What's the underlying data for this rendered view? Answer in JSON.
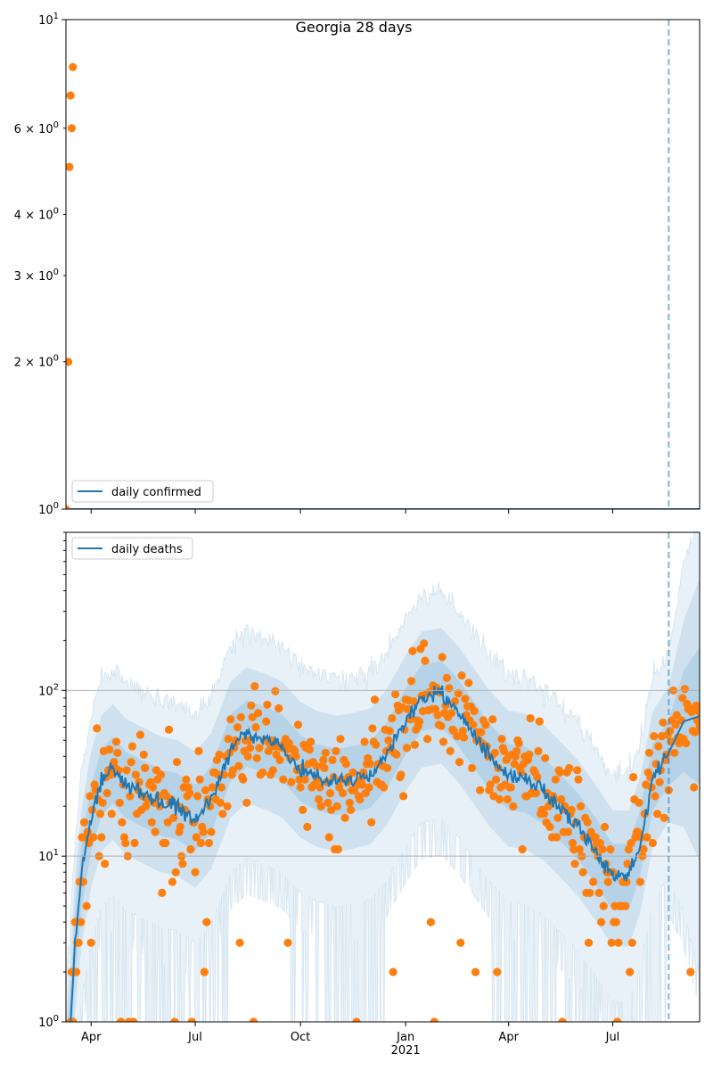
{
  "figure": {
    "suptitle": "Georgia 28 days"
  },
  "chart_data": [
    {
      "type": "line",
      "legend": {
        "label": "daily confirmed",
        "placement": "lower-left"
      },
      "yscale": "log",
      "ylim": [
        1,
        10
      ],
      "x_range": [
        "2020-03-10",
        "2021-09-15"
      ],
      "y_ticks": [
        {
          "value": 1,
          "base": "10",
          "exp": "0"
        },
        {
          "value": 10,
          "base": "10",
          "exp": "1"
        }
      ],
      "y_minor_ticks": [
        {
          "value": 2,
          "base": "2 × 10",
          "exp": "0"
        },
        {
          "value": 3,
          "base": "3 × 10",
          "exp": "0"
        },
        {
          "value": 4,
          "base": "4 × 10",
          "exp": "0"
        },
        {
          "value": 6,
          "base": "6 × 10",
          "exp": "0"
        }
      ],
      "forecast_line_date": "2021-08-19",
      "series": [
        {
          "name": "daily confirmed",
          "kind": "line",
          "x": [
            "2020-03-10",
            "2021-09-15"
          ],
          "y": [
            1,
            1
          ]
        },
        {
          "kind": "points",
          "x": [
            "2020-03-10",
            "2020-03-12",
            "2020-03-13",
            "2020-03-14",
            "2020-03-15",
            "2020-03-16"
          ],
          "y": [
            1,
            2,
            5,
            7,
            6,
            8
          ]
        }
      ],
      "colors": {
        "line": "#1f77b4",
        "points": "#ff7f0e",
        "forecast_line": "#1f77b4"
      }
    },
    {
      "type": "line",
      "legend": {
        "label": "daily deaths",
        "placement": "upper-left"
      },
      "yscale": "log",
      "ylim": [
        1,
        900
      ],
      "grid": "major-y",
      "x_range": [
        "2020-03-10",
        "2021-09-15"
      ],
      "x_ticks": [
        {
          "date": "2020-04-01",
          "label": "Apr"
        },
        {
          "date": "2020-07-01",
          "label": "Jul"
        },
        {
          "date": "2020-10-01",
          "label": "Oct"
        },
        {
          "date": "2021-01-01",
          "label": "Jan",
          "sublabel": "2021"
        },
        {
          "date": "2021-04-01",
          "label": "Apr"
        },
        {
          "date": "2021-07-01",
          "label": "Jul"
        }
      ],
      "y_ticks": [
        {
          "value": 1,
          "base": "10",
          "exp": "0"
        },
        {
          "value": 10,
          "base": "10",
          "exp": "1"
        },
        {
          "value": 100,
          "base": "10",
          "exp": "2"
        }
      ],
      "forecast_line_date": "2021-08-19",
      "anchors": [
        [
          "2020-03-10",
          0.4
        ],
        [
          "2020-03-14",
          1.0
        ],
        [
          "2020-03-18",
          3
        ],
        [
          "2020-03-24",
          8
        ],
        [
          "2020-04-01",
          17
        ],
        [
          "2020-04-10",
          28
        ],
        [
          "2020-04-20",
          33
        ],
        [
          "2020-05-01",
          27
        ],
        [
          "2020-05-15",
          24
        ],
        [
          "2020-06-01",
          21
        ],
        [
          "2020-06-15",
          20
        ],
        [
          "2020-07-01",
          17
        ],
        [
          "2020-07-15",
          22
        ],
        [
          "2020-08-01",
          45
        ],
        [
          "2020-08-15",
          55
        ],
        [
          "2020-09-01",
          50
        ],
        [
          "2020-09-15",
          45
        ],
        [
          "2020-10-01",
          34
        ],
        [
          "2020-10-15",
          30
        ],
        [
          "2020-11-01",
          28
        ],
        [
          "2020-11-15",
          29
        ],
        [
          "2020-12-01",
          31
        ],
        [
          "2020-12-15",
          40
        ],
        [
          "2021-01-01",
          65
        ],
        [
          "2021-01-15",
          90
        ],
        [
          "2021-02-01",
          95
        ],
        [
          "2021-02-15",
          75
        ],
        [
          "2021-03-01",
          55
        ],
        [
          "2021-03-15",
          40
        ],
        [
          "2021-04-01",
          30
        ],
        [
          "2021-04-15",
          29
        ],
        [
          "2021-05-01",
          25
        ],
        [
          "2021-05-15",
          20
        ],
        [
          "2021-06-01",
          15
        ],
        [
          "2021-06-15",
          11
        ],
        [
          "2021-07-01",
          7.5
        ],
        [
          "2021-07-15",
          7.5
        ],
        [
          "2021-07-25",
          12
        ],
        [
          "2021-08-05",
          30
        ],
        [
          "2021-08-19",
          42
        ],
        [
          "2021-09-01",
          65
        ],
        [
          "2021-09-15",
          70
        ]
      ],
      "series": [
        {
          "name": "daily deaths",
          "kind": "line"
        },
        {
          "kind": "band-50"
        },
        {
          "kind": "band-90"
        },
        {
          "kind": "points-observed"
        }
      ],
      "colors": {
        "line": "#1f77b4",
        "points": "#ff7f0e",
        "band": "#1f77b4",
        "grid": "#b0b0b0",
        "forecast_line": "#1f77b4"
      }
    }
  ]
}
